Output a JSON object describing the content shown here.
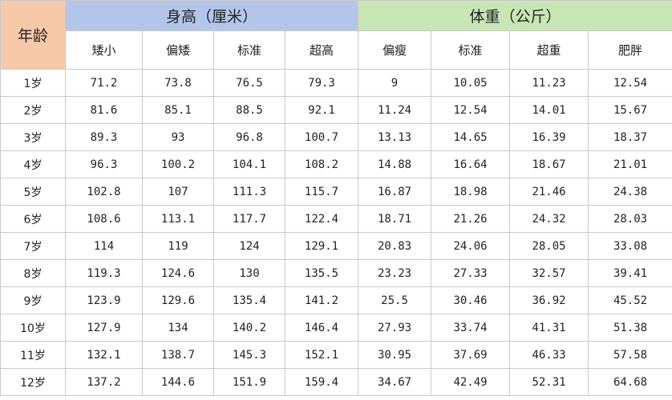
{
  "corner_label": "年龄",
  "groups": {
    "height": "身高（厘米）",
    "weight": "体重（公斤）"
  },
  "columns": {
    "height": [
      "矮小",
      "偏矮",
      "标准",
      "超高"
    ],
    "weight": [
      "偏瘦",
      "标准",
      "超重",
      "肥胖"
    ]
  },
  "rows": [
    {
      "age": "1岁",
      "height": [
        "71.2",
        "73.8",
        "76.5",
        "79.3"
      ],
      "weight": [
        "9",
        "10.05",
        "11.23",
        "12.54"
      ]
    },
    {
      "age": "2岁",
      "height": [
        "81.6",
        "85.1",
        "88.5",
        "92.1"
      ],
      "weight": [
        "11.24",
        "12.54",
        "14.01",
        "15.67"
      ]
    },
    {
      "age": "3岁",
      "height": [
        "89.3",
        "93",
        "96.8",
        "100.7"
      ],
      "weight": [
        "13.13",
        "14.65",
        "16.39",
        "18.37"
      ]
    },
    {
      "age": "4岁",
      "height": [
        "96.3",
        "100.2",
        "104.1",
        "108.2"
      ],
      "weight": [
        "14.88",
        "16.64",
        "18.67",
        "21.01"
      ]
    },
    {
      "age": "5岁",
      "height": [
        "102.8",
        "107",
        "111.3",
        "115.7"
      ],
      "weight": [
        "16.87",
        "18.98",
        "21.46",
        "24.38"
      ]
    },
    {
      "age": "6岁",
      "height": [
        "108.6",
        "113.1",
        "117.7",
        "122.4"
      ],
      "weight": [
        "18.71",
        "21.26",
        "24.32",
        "28.03"
      ]
    },
    {
      "age": "7岁",
      "height": [
        "114",
        "119",
        "124",
        "129.1"
      ],
      "weight": [
        "20.83",
        "24.06",
        "28.05",
        "33.08"
      ]
    },
    {
      "age": "8岁",
      "height": [
        "119.3",
        "124.6",
        "130",
        "135.5"
      ],
      "weight": [
        "23.23",
        "27.33",
        "32.57",
        "39.41"
      ]
    },
    {
      "age": "9岁",
      "height": [
        "123.9",
        "129.6",
        "135.4",
        "141.2"
      ],
      "weight": [
        "25.5",
        "30.46",
        "36.92",
        "45.52"
      ]
    },
    {
      "age": "10岁",
      "height": [
        "127.9",
        "134",
        "140.2",
        "146.4"
      ],
      "weight": [
        "27.93",
        "33.74",
        "41.31",
        "51.38"
      ]
    },
    {
      "age": "11岁",
      "height": [
        "132.1",
        "138.7",
        "145.3",
        "152.1"
      ],
      "weight": [
        "30.95",
        "37.69",
        "46.33",
        "57.58"
      ]
    },
    {
      "age": "12岁",
      "height": [
        "137.2",
        "144.6",
        "151.9",
        "159.4"
      ],
      "weight": [
        "34.67",
        "42.49",
        "52.31",
        "64.68"
      ]
    }
  ],
  "colors": {
    "age_header": "#f7c9a8",
    "height_header": "#b3c6ea",
    "weight_header": "#c8e6b4",
    "grid": "#c9c9c9"
  }
}
